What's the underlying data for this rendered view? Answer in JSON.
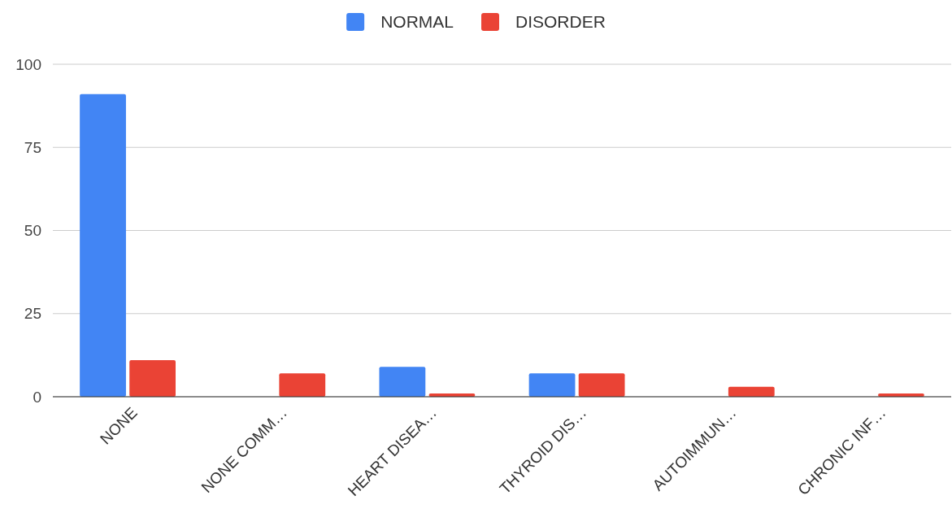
{
  "chart_data": {
    "type": "bar",
    "categories": [
      "NONE",
      "NONE COMM…",
      "HEART DISEA…",
      "THYROID DIS…",
      "AUTOIMMUN…",
      "CHRONIC INF…"
    ],
    "series": [
      {
        "name": "NORMAL",
        "color": "#4285f4",
        "values": [
          91,
          0,
          9,
          7,
          0,
          0
        ]
      },
      {
        "name": "DISORDER",
        "color": "#ea4335",
        "values": [
          11,
          7,
          1,
          7,
          3,
          1
        ]
      }
    ],
    "ylim": [
      0,
      100
    ],
    "yticks": [
      0,
      25,
      50,
      75,
      100
    ],
    "grid": "y",
    "legend": "top"
  }
}
